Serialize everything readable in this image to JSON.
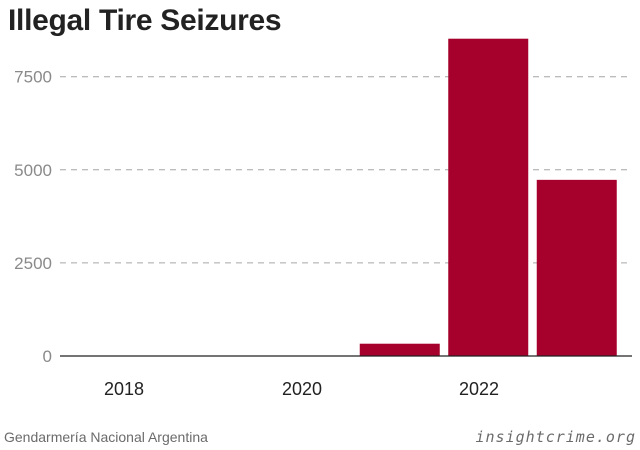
{
  "chart_data": {
    "type": "bar",
    "title": "Illegal Tire Seizures",
    "years": [
      2018,
      2019,
      2020,
      2021,
      2022,
      2023
    ],
    "values": [
      0,
      0,
      0,
      330,
      8520,
      4730
    ],
    "xticks": [
      "2018",
      "2020",
      "2022"
    ],
    "yticks": [
      "0",
      "2500",
      "5000",
      "7500"
    ],
    "ylim": [
      0,
      8700
    ],
    "grid": true,
    "bar_color": "#a6002c",
    "xlabel": "",
    "ylabel": ""
  },
  "footer": {
    "source": "Gendarmería Nacional Argentina",
    "credit": "insightcrime.org"
  }
}
